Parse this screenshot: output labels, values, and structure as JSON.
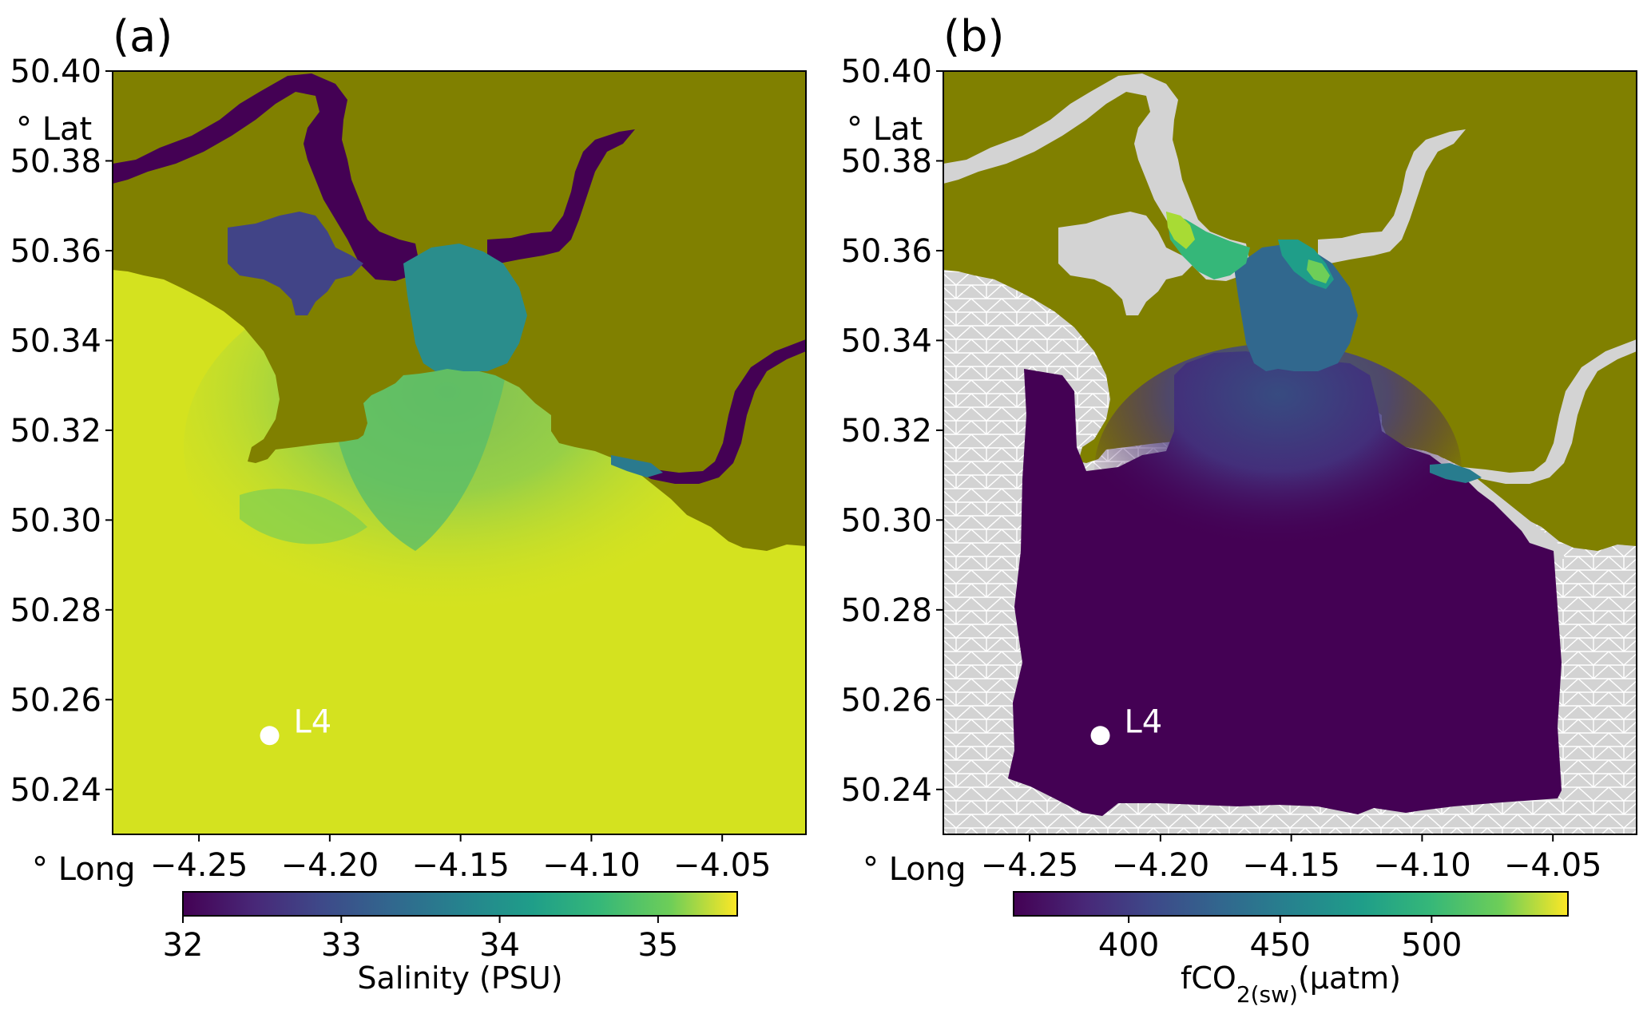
{
  "figure": {
    "panels": [
      {
        "id": "a",
        "panel_label": "(a)",
        "lat_unit_label": "° Lat",
        "long_unit_label": "° Long",
        "y_ticks": [
          "50.40",
          "50.38",
          "50.36",
          "50.34",
          "50.32",
          "50.30",
          "50.28",
          "50.26",
          "50.24"
        ],
        "x_ticks": [
          "−4.25",
          "−4.20",
          "−4.15",
          "−4.10",
          "−4.05"
        ],
        "station_label": "L4",
        "colorbar": {
          "ticks": [
            "32",
            "33",
            "34",
            "35"
          ],
          "label": "Salinity (PSU)",
          "range": [
            32,
            35.5
          ],
          "colormap": "viridis"
        },
        "field": "salinity"
      },
      {
        "id": "b",
        "panel_label": "(b)",
        "lat_unit_label": "° Lat",
        "long_unit_label": "° Long",
        "y_ticks": [
          "50.40",
          "50.38",
          "50.36",
          "50.34",
          "50.32",
          "50.30",
          "50.28",
          "50.26",
          "50.24"
        ],
        "x_ticks": [
          "−4.25",
          "−4.20",
          "−4.15",
          "−4.10",
          "−4.05"
        ],
        "station_label": "L4",
        "colorbar": {
          "ticks": [
            "400",
            "450",
            "500"
          ],
          "label_main": "fCO",
          "label_sub": "2(sw)",
          "label_unit": "(µatm)",
          "range": [
            362,
            545
          ],
          "colormap": "viridis"
        },
        "field": "fCO2(sw)"
      }
    ],
    "map_extent": {
      "lon_min": -4.283,
      "lon_max": -4.018,
      "lat_min": 50.23,
      "lat_max": 50.4
    },
    "station": {
      "name": "L4",
      "lon": -4.223,
      "lat": 50.252
    },
    "colors": {
      "land": "#808000",
      "mesh_background": "#d3d3d3",
      "mesh_lines": "#ffffff",
      "station_marker": "#ffffff",
      "viridis_dark": "#440154",
      "viridis_yellow": "#fde725"
    }
  }
}
